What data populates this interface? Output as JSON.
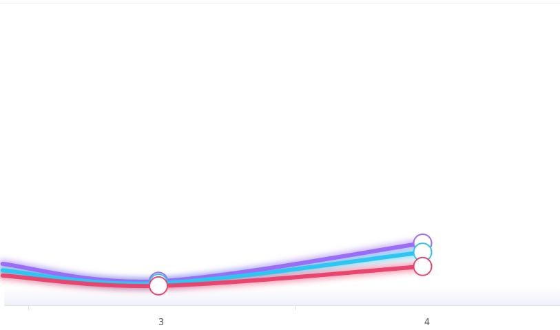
{
  "chart_data": {
    "type": "line",
    "title": "",
    "xlabel": "",
    "ylabel": "",
    "x_tick_labels": [
      "3",
      "4"
    ],
    "x": [
      2.41,
      3,
      4
    ],
    "series": [
      {
        "color": "#9b6cf5",
        "values": [
          0.17,
          0.035,
          0.33
        ]
      },
      {
        "color": "#2ec6f0",
        "values": [
          0.12,
          0.02,
          0.26
        ]
      },
      {
        "color": "#e8456f",
        "values": [
          0.08,
          0.0,
          0.15
        ]
      }
    ],
    "xlim": [
      2.4,
      4.52
    ],
    "ylim": [
      -0.15,
      2.0
    ],
    "grid": false,
    "legend": "none"
  }
}
